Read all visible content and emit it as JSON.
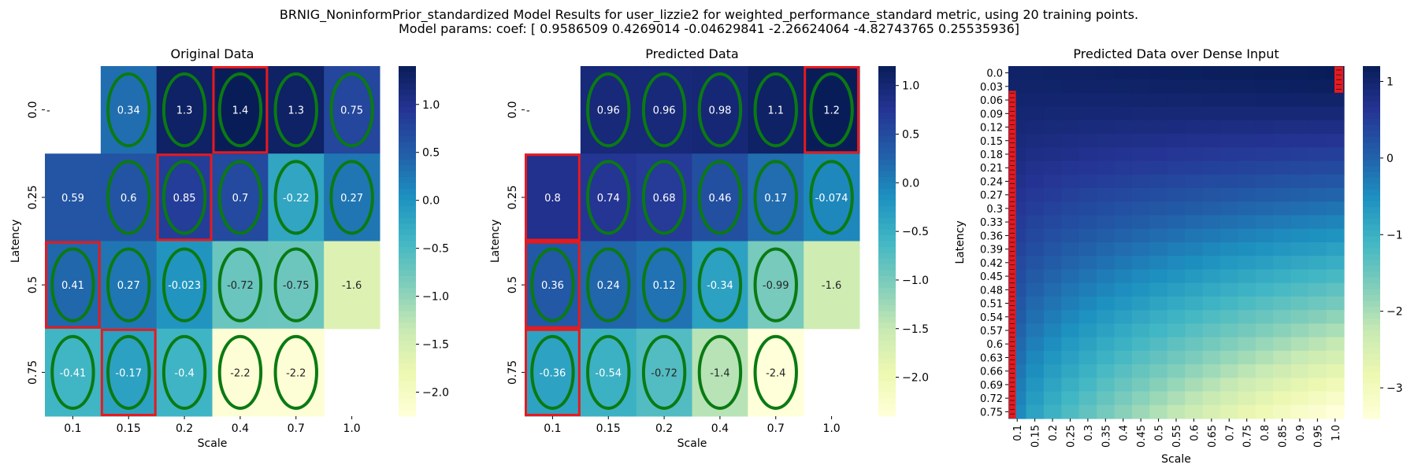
{
  "figure": {
    "title_line1": "BRNIG_NoninformPrior_standardized Model Results for user_lizzie2 for weighted_performance_standard metric, using 20 training points.",
    "title_line2": "Model params: coef: [ 0.9586509   0.4269014  -0.04629841 -2.26624064 -4.82743765  0.25535936]"
  },
  "colormap": {
    "name": "YlGnBu",
    "stops": [
      "#ffffd9",
      "#edf8b1",
      "#c7e9b4",
      "#7fcdbb",
      "#41b6c4",
      "#1d91c0",
      "#225ea8",
      "#253494",
      "#081d58"
    ],
    "circle_color": "#0a7a12",
    "highlight_color": "#e8191d"
  },
  "chart_data": [
    {
      "type": "heatmap",
      "title": "Original Data",
      "xlabel": "Scale",
      "ylabel": "Latency",
      "x_categories": [
        "0.1",
        "0.15",
        "0.2",
        "0.4",
        "0.7",
        "1.0"
      ],
      "y_categories": [
        "0.0",
        "0.25",
        "0.5",
        "0.75"
      ],
      "values": [
        [
          null,
          0.34,
          1.3,
          1.4,
          1.3,
          0.75
        ],
        [
          0.59,
          0.6,
          0.85,
          0.7,
          -0.22,
          0.27
        ],
        [
          0.41,
          0.27,
          -0.023,
          -0.72,
          -0.75,
          -1.6
        ],
        [
          -0.41,
          -0.17,
          -0.4,
          -2.2,
          -2.2,
          null
        ]
      ],
      "vmin": -2.25,
      "vmax": 1.4,
      "colorbar_ticks": [
        "1.0",
        "0.5",
        "0.0",
        "−0.5",
        "−1.0",
        "−1.5",
        "−2.0"
      ],
      "circled_cells": [
        [
          0,
          1
        ],
        [
          0,
          2
        ],
        [
          0,
          3
        ],
        [
          0,
          4
        ],
        [
          0,
          5
        ],
        [
          1,
          1
        ],
        [
          1,
          2
        ],
        [
          1,
          3
        ],
        [
          1,
          4
        ],
        [
          1,
          5
        ],
        [
          2,
          0
        ],
        [
          2,
          1
        ],
        [
          2,
          2
        ],
        [
          2,
          3
        ],
        [
          2,
          4
        ],
        [
          3,
          0
        ],
        [
          3,
          1
        ],
        [
          3,
          2
        ],
        [
          3,
          3
        ],
        [
          3,
          4
        ]
      ],
      "highlighted_cells": [
        [
          0,
          3
        ],
        [
          1,
          2
        ],
        [
          2,
          0
        ],
        [
          3,
          1
        ]
      ]
    },
    {
      "type": "heatmap",
      "title": "Predicted Data",
      "xlabel": "Scale",
      "ylabel": "Latency",
      "x_categories": [
        "0.1",
        "0.15",
        "0.2",
        "0.4",
        "0.7",
        "1.0"
      ],
      "y_categories": [
        "0.0",
        "0.25",
        "0.5",
        "0.75"
      ],
      "values": [
        [
          null,
          0.96,
          0.96,
          0.98,
          1.1,
          1.2
        ],
        [
          0.8,
          0.74,
          0.68,
          0.46,
          0.17,
          -0.074
        ],
        [
          0.36,
          0.24,
          0.12,
          -0.34,
          -0.99,
          -1.6
        ],
        [
          -0.36,
          -0.54,
          -0.72,
          -1.4,
          -2.4,
          null
        ]
      ],
      "vmin": -2.4,
      "vmax": 1.2,
      "colorbar_ticks": [
        "1.0",
        "0.5",
        "0.0",
        "−0.5",
        "−1.0",
        "−1.5",
        "−2.0"
      ],
      "circled_cells": [
        [
          0,
          1
        ],
        [
          0,
          2
        ],
        [
          0,
          3
        ],
        [
          0,
          4
        ],
        [
          0,
          5
        ],
        [
          1,
          1
        ],
        [
          1,
          2
        ],
        [
          1,
          3
        ],
        [
          1,
          4
        ],
        [
          1,
          5
        ],
        [
          2,
          0
        ],
        [
          2,
          1
        ],
        [
          2,
          2
        ],
        [
          2,
          3
        ],
        [
          2,
          4
        ],
        [
          3,
          0
        ],
        [
          3,
          1
        ],
        [
          3,
          2
        ],
        [
          3,
          3
        ],
        [
          3,
          4
        ]
      ],
      "highlighted_cells": [
        [
          0,
          5
        ],
        [
          1,
          0
        ],
        [
          2,
          0
        ],
        [
          3,
          0
        ]
      ]
    },
    {
      "type": "heatmap",
      "title": "Predicted Data over Dense Input",
      "xlabel": "Scale",
      "ylabel": "Latency",
      "x_categories": [
        "0.1",
        "0.15",
        "0.2",
        "0.25",
        "0.3",
        "0.35",
        "0.4",
        "0.45",
        "0.5",
        "0.55",
        "0.6",
        "0.65",
        "0.7",
        "0.75",
        "0.8",
        "0.85",
        "0.9",
        "0.95",
        "1.0"
      ],
      "y_categories": [
        "0.0",
        "0.03",
        "0.06",
        "0.09",
        "0.12",
        "0.15",
        "0.18",
        "0.21",
        "0.24",
        "0.27",
        "0.3",
        "0.33",
        "0.36",
        "0.39",
        "0.42",
        "0.45",
        "0.48",
        "0.51",
        "0.54",
        "0.57",
        "0.6",
        "0.63",
        "0.66",
        "0.69",
        "0.72",
        "0.75"
      ],
      "dense_rule": "interpolated from predicted model surface; top-left ≈1.1, bottom-right ≈−3.4",
      "corner_values": {
        "top_left": 1.05,
        "top_right": 1.2,
        "bottom_left": -0.45,
        "bottom_right": -3.4
      },
      "vmin": -3.4,
      "vmax": 1.2,
      "colorbar_ticks": [
        "1",
        "0",
        "−1",
        "−2",
        "−3"
      ],
      "highlight_column_x": "0.1",
      "highlight_top_right_rows": [
        "0.0",
        "0.03"
      ]
    }
  ]
}
